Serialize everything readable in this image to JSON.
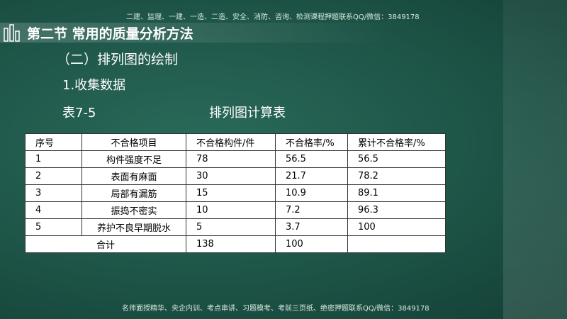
{
  "header": {
    "watermark": "二建、监理、一建、一造、二造、安全、消防、咨询、检测课程押题联系QQ/微信：3849178",
    "title": "第二节  常用的质量分析方法"
  },
  "subtitle": "（二）排列图的绘制",
  "section": "1.收集数据",
  "caption": {
    "label": "表7-5",
    "title": "排列图计算表"
  },
  "table": {
    "headers": [
      "序号",
      "不合格项目",
      "不合格构件/件",
      "不合格率/%",
      "累计不合格率/%"
    ],
    "rows": [
      [
        1,
        "构件强度不足",
        78,
        56.5,
        56.5
      ],
      [
        2,
        "表面有麻面",
        30,
        21.7,
        78.2
      ],
      [
        3,
        "局部有漏筋",
        15,
        10.9,
        89.1
      ],
      [
        4,
        "振捣不密实",
        10,
        7.2,
        96.3
      ],
      [
        5,
        "养护不良早期脱水",
        5,
        3.7,
        100
      ]
    ],
    "total": [
      "合计",
      138,
      100
    ]
  },
  "footer": "名师面授精华、央企内训、考点串讲、习题模考、考前三页纸、绝密押题联系QQ/微信：3849178"
}
